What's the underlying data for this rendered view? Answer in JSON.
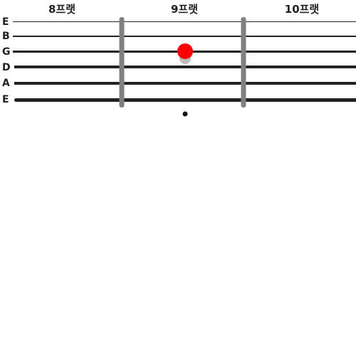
{
  "fretboard": {
    "fret_labels": [
      "8프랫",
      "9프랫",
      "10프랫"
    ],
    "strings": [
      {
        "name": "E"
      },
      {
        "name": "B"
      },
      {
        "name": "G"
      },
      {
        "name": "D"
      },
      {
        "name": "A"
      },
      {
        "name": "E"
      }
    ],
    "highlighted_note": {
      "string": "G",
      "fret": "9프랫"
    },
    "position_marker": {
      "fret": "9프랫"
    }
  },
  "colors": {
    "string": "#222222",
    "fret_bar": "#808080",
    "note": "#ff0000",
    "note_shadow": "#bdbdbd",
    "marker": "#111111",
    "background": "#ffffff"
  }
}
